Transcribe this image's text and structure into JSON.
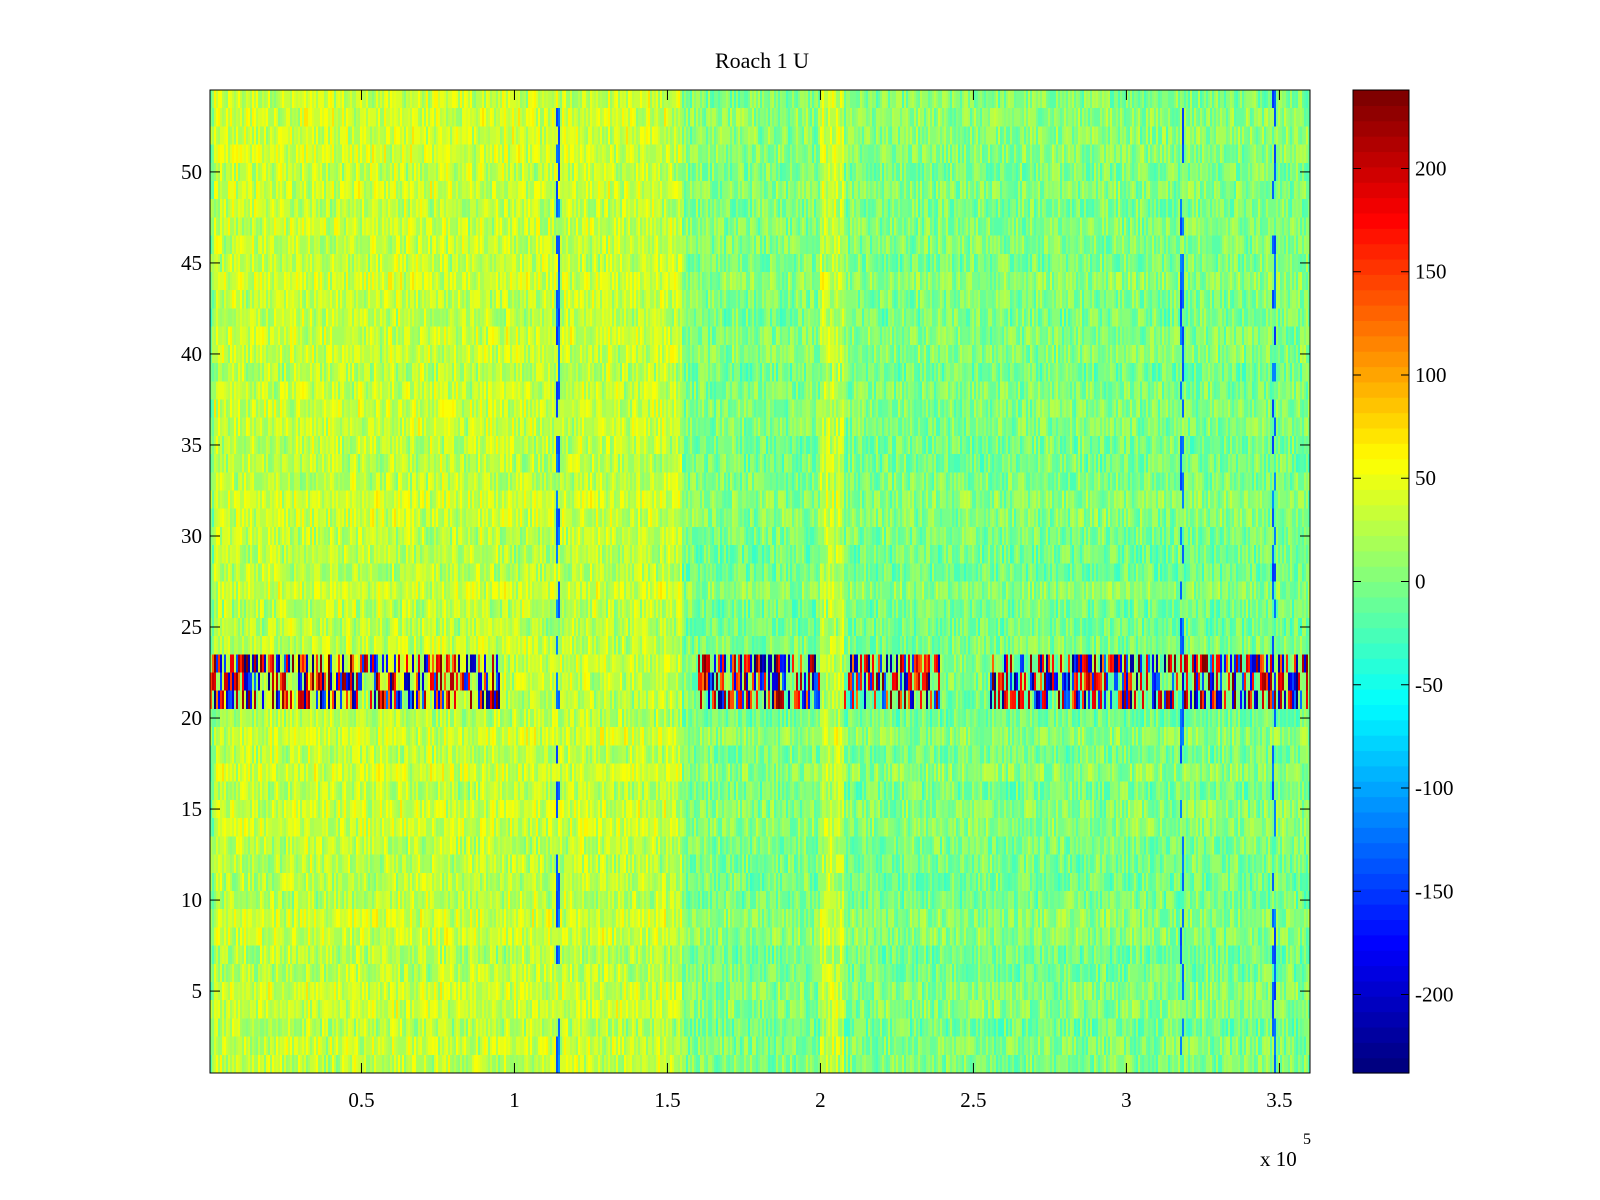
{
  "chart_data": {
    "type": "heatmap",
    "title": "Roach 1 U",
    "xlabel": "",
    "ylabel": "",
    "x_exponent_label": "x 10",
    "x_exponent_power": "5",
    "x_range_scaled": [
      0.005,
      3.6
    ],
    "y_range": [
      0.5,
      54.5
    ],
    "rows": 54,
    "x_ticks": [
      {
        "value": 0.5,
        "label": "0.5"
      },
      {
        "value": 1,
        "label": "1"
      },
      {
        "value": 1.5,
        "label": "1.5"
      },
      {
        "value": 2,
        "label": "2"
      },
      {
        "value": 2.5,
        "label": "2.5"
      },
      {
        "value": 3,
        "label": "3"
      },
      {
        "value": 3.5,
        "label": "3.5"
      }
    ],
    "y_ticks": [
      {
        "value": 5,
        "label": "5"
      },
      {
        "value": 10,
        "label": "10"
      },
      {
        "value": 15,
        "label": "15"
      },
      {
        "value": 20,
        "label": "20"
      },
      {
        "value": 25,
        "label": "25"
      },
      {
        "value": 30,
        "label": "30"
      },
      {
        "value": 35,
        "label": "35"
      },
      {
        "value": 40,
        "label": "40"
      },
      {
        "value": 45,
        "label": "45"
      },
      {
        "value": 50,
        "label": "50"
      }
    ],
    "colorbar": {
      "range": [
        -238,
        238
      ],
      "colormap": "jet",
      "levels": 64,
      "ticks": [
        {
          "value": 200,
          "label": "200"
        },
        {
          "value": 150,
          "label": "150"
        },
        {
          "value": 100,
          "label": "100"
        },
        {
          "value": 50,
          "label": "50"
        },
        {
          "value": 0,
          "label": "0"
        },
        {
          "value": -50,
          "label": "-50"
        },
        {
          "value": -100,
          "label": "-100"
        },
        {
          "value": -150,
          "label": "-150"
        },
        {
          "value": -200,
          "label": "-200"
        }
      ]
    },
    "features": {
      "baseline_value": 0,
      "warm_regions_x": [
        [
          0.02,
          1.55
        ],
        [
          2.0,
          2.08
        ]
      ],
      "strong_band_rows": [
        21,
        22,
        23
      ],
      "strong_band_active_x": [
        [
          0.005,
          0.95
        ],
        [
          1.6,
          2.0
        ],
        [
          2.07,
          2.4
        ],
        [
          2.55,
          3.6
        ]
      ],
      "vertical_artifacts_x": [
        1.14,
        3.18,
        3.48
      ]
    }
  }
}
